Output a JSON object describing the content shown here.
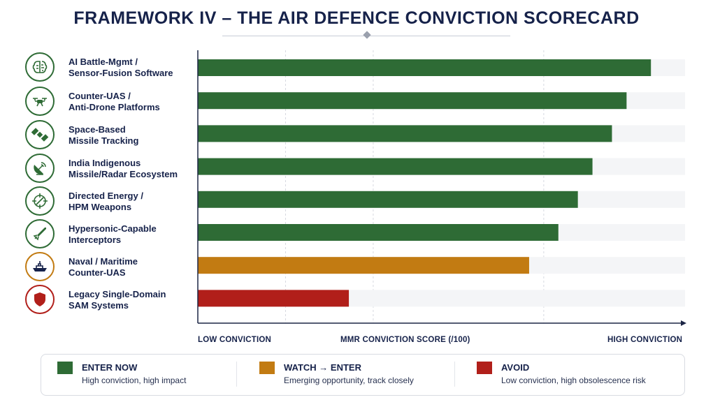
{
  "title": "FRAMEWORK IV – THE AIR DEFENCE CONVICTION SCORECARD",
  "colors": {
    "enter_now": "#2e6b35",
    "watch_enter": "#c27b12",
    "avoid": "#b11f1a",
    "track": "#f4f5f7",
    "axis": "#1c2545",
    "text": "#16224a"
  },
  "axis_captions": {
    "low": "LOW CONVICTION",
    "middle": "MMR CONVICTION SCORE (/100)",
    "high": "HIGH CONVICTION"
  },
  "chart_data": {
    "type": "bar",
    "orientation": "horizontal",
    "title": "FRAMEWORK IV – THE AIR DEFENCE CONVICTION SCORECARD",
    "xlabel": "MMR CONVICTION SCORE (/100)",
    "xlim": [
      0,
      100
    ],
    "grid": true,
    "categories": [
      "AI Battle-Mgmt / Sensor-Fusion Software",
      "Counter-UAS / Anti-Drone Platforms",
      "Space-Based Missile Tracking",
      "India Indigenous Missile/Radar Ecosystem",
      "Directed Energy / HPM Weapons",
      "Hypersonic-Capable Interceptors",
      "Naval / Maritime Counter-UAS",
      "Legacy Single-Domain SAM Systems"
    ],
    "values": [
      93,
      88,
      85,
      81,
      78,
      74,
      68,
      31
    ],
    "status": [
      "enter_now",
      "enter_now",
      "enter_now",
      "enter_now",
      "enter_now",
      "enter_now",
      "watch_enter",
      "avoid"
    ],
    "icons": [
      "brain-icon",
      "drone-icon",
      "satellite-icon",
      "radar-dish-icon",
      "crosshair-icon",
      "missile-icon",
      "warship-icon",
      "shield-icon"
    ],
    "legend_placement": "bottom"
  },
  "rows": [
    {
      "line1": "AI Battle-Mgmt /",
      "line2": "Sensor-Fusion Software"
    },
    {
      "line1": "Counter-UAS /",
      "line2": "Anti-Drone Platforms"
    },
    {
      "line1": "Space-Based",
      "line2": "Missile Tracking"
    },
    {
      "line1": "India Indigenous",
      "line2": "Missile/Radar Ecosystem"
    },
    {
      "line1": "Directed Energy /",
      "line2": "HPM Weapons"
    },
    {
      "line1": "Hypersonic-Capable",
      "line2": "Interceptors"
    },
    {
      "line1": "Naval / Maritime",
      "line2": "Counter-UAS"
    },
    {
      "line1": "Legacy Single-Domain",
      "line2": "SAM Systems"
    }
  ],
  "legend": [
    {
      "key": "enter_now",
      "title": "ENTER NOW",
      "desc": "High conviction, high impact"
    },
    {
      "key": "watch_enter",
      "title": "WATCH → ENTER",
      "desc": "Emerging opportunity, track closely"
    },
    {
      "key": "avoid",
      "title": "AVOID",
      "desc": "Low conviction, high obsolescence risk"
    }
  ]
}
